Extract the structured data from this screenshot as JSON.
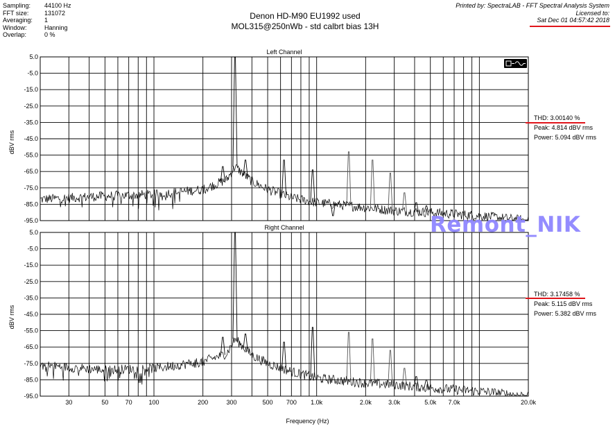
{
  "header_left": [
    {
      "k": "Sampling:",
      "v": "44100 Hz"
    },
    {
      "k": "FFT size:",
      "v": "131072"
    },
    {
      "k": "Averaging:",
      "v": "1"
    },
    {
      "k": "Window:",
      "v": "Hanning"
    },
    {
      "k": "Overlap:",
      "v": "0 %"
    }
  ],
  "title": {
    "line1": "Denon HD-M90 EU1992 used",
    "line2": "MOL315@250nWb - std calbrt bias 13H"
  },
  "header_right": {
    "printed_by": "Printed by: SpectraLAB - FFT Spectral Analysis System",
    "licensed": "Licensed to:",
    "date": "Sat Dec 01 04:57:42 2018"
  },
  "watermark": "Remont_NIK",
  "x_axis_label": "Frequency (Hz)",
  "colors": {
    "accent_red": "#e0141a",
    "watermark": "#8f86ff"
  },
  "chart_data": [
    {
      "type": "line",
      "title": "Left Channel",
      "ylabel": "dBV rms",
      "xlabel": "Frequency (Hz)",
      "xscale": "log",
      "xlim": [
        20,
        20000
      ],
      "ylim": [
        -95,
        5
      ],
      "grid": true,
      "x_ticks": [
        30,
        50,
        70,
        100,
        200,
        300,
        500,
        700,
        1000,
        2000,
        3000,
        5000,
        7000,
        20000
      ],
      "x_tick_labels": [
        "30",
        "50",
        "70",
        "100",
        "200",
        "300",
        "500",
        "700",
        "1.0k",
        "2.0k",
        "3.0k",
        "5.0k",
        "7.0k",
        "20.0k"
      ],
      "y_ticks": [
        5,
        -5,
        -15,
        -25,
        -35,
        -45,
        -55,
        -65,
        -75,
        -85,
        -95
      ],
      "y_tick_labels": [
        "5.0",
        "-5.0",
        "-15.0",
        "-25.0",
        "-35.0",
        "-45.0",
        "-55.0",
        "-65.0",
        "-75.0",
        "-85.0",
        "-95.0"
      ],
      "noise_floor": [
        [
          20,
          -82
        ],
        [
          50,
          -80
        ],
        [
          100,
          -79
        ],
        [
          200,
          -76
        ],
        [
          280,
          -70
        ],
        [
          315,
          -62
        ],
        [
          400,
          -71
        ],
        [
          500,
          -76
        ],
        [
          700,
          -81
        ],
        [
          1000,
          -84
        ],
        [
          2000,
          -87
        ],
        [
          3000,
          -89
        ],
        [
          5000,
          -90
        ],
        [
          10000,
          -92
        ],
        [
          20000,
          -95
        ]
      ],
      "peaks": [
        [
          265,
          -62
        ],
        [
          315,
          4.8
        ],
        [
          365,
          -58
        ],
        [
          630,
          -58
        ],
        [
          945,
          -64
        ],
        [
          1260,
          -92
        ],
        [
          1575,
          -53
        ],
        [
          2205,
          -58
        ],
        [
          2835,
          -66
        ],
        [
          3465,
          -78
        ],
        [
          4095,
          -84
        ],
        [
          4725,
          -86
        ]
      ],
      "stats": {
        "thd": "THD: 3.00140 %",
        "peak": "Peak: 4.814 dBV rms",
        "power": "Power: 5.094 dBV rms"
      }
    },
    {
      "type": "line",
      "title": "Right Channel",
      "ylabel": "dBV rms",
      "xlabel": "Frequency (Hz)",
      "xscale": "log",
      "xlim": [
        20,
        20000
      ],
      "ylim": [
        -95,
        5
      ],
      "grid": true,
      "x_ticks": [
        30,
        50,
        70,
        100,
        200,
        300,
        500,
        700,
        1000,
        2000,
        3000,
        5000,
        7000,
        20000
      ],
      "x_tick_labels": [
        "30",
        "50",
        "70",
        "100",
        "200",
        "300",
        "500",
        "700",
        "1.0k",
        "2.0k",
        "3.0k",
        "5.0k",
        "7.0k",
        "20.0k"
      ],
      "y_ticks": [
        5,
        -5,
        -15,
        -25,
        -35,
        -45,
        -55,
        -65,
        -75,
        -85,
        -95
      ],
      "y_tick_labels": [
        "5.0",
        "-5.0",
        "-15.0",
        "-25.0",
        "-35.0",
        "-45.0",
        "-55.0",
        "-65.0",
        "-75.0",
        "-85.0",
        "-95.0"
      ],
      "noise_floor": [
        [
          20,
          -76
        ],
        [
          50,
          -79
        ],
        [
          100,
          -78
        ],
        [
          200,
          -74
        ],
        [
          280,
          -69
        ],
        [
          315,
          -60
        ],
        [
          400,
          -70
        ],
        [
          500,
          -75
        ],
        [
          700,
          -80
        ],
        [
          1000,
          -84
        ],
        [
          2000,
          -87
        ],
        [
          3000,
          -88
        ],
        [
          5000,
          -90
        ],
        [
          10000,
          -92
        ],
        [
          20000,
          -95
        ]
      ],
      "peaks": [
        [
          265,
          -59
        ],
        [
          315,
          5.1
        ],
        [
          365,
          -57
        ],
        [
          630,
          -62
        ],
        [
          945,
          -53
        ],
        [
          1260,
          -85
        ],
        [
          1575,
          -56
        ],
        [
          2205,
          -60
        ],
        [
          2835,
          -67
        ],
        [
          3465,
          -78
        ],
        [
          4095,
          -83
        ],
        [
          4725,
          -85
        ]
      ],
      "stats": {
        "thd": "THD: 3.17458 %",
        "peak": "Peak: 5.115 dBV rms",
        "power": "Power: 5.382 dBV rms"
      }
    }
  ]
}
